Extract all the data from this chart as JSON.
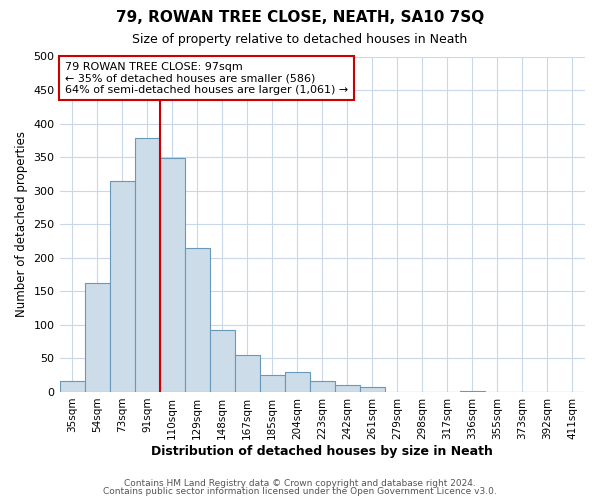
{
  "title": "79, ROWAN TREE CLOSE, NEATH, SA10 7SQ",
  "subtitle": "Size of property relative to detached houses in Neath",
  "xlabel": "Distribution of detached houses by size in Neath",
  "ylabel": "Number of detached properties",
  "bar_labels": [
    "35sqm",
    "54sqm",
    "73sqm",
    "91sqm",
    "110sqm",
    "129sqm",
    "148sqm",
    "167sqm",
    "185sqm",
    "204sqm",
    "223sqm",
    "242sqm",
    "261sqm",
    "279sqm",
    "298sqm",
    "317sqm",
    "336sqm",
    "355sqm",
    "373sqm",
    "392sqm",
    "411sqm"
  ],
  "bar_values": [
    16,
    163,
    315,
    379,
    348,
    215,
    93,
    55,
    25,
    30,
    16,
    10,
    7,
    0,
    0,
    0,
    2,
    0,
    0,
    0,
    0
  ],
  "bar_color": "#ccdce8",
  "bar_edge_color": "#6699bb",
  "vline_color": "#cc0000",
  "annotation_text": "79 ROWAN TREE CLOSE: 97sqm\n← 35% of detached houses are smaller (586)\n64% of semi-detached houses are larger (1,061) →",
  "annotation_box_color": "#ffffff",
  "annotation_box_edge": "#cc0000",
  "ylim": [
    0,
    500
  ],
  "yticks": [
    0,
    50,
    100,
    150,
    200,
    250,
    300,
    350,
    400,
    450,
    500
  ],
  "footer1": "Contains HM Land Registry data © Crown copyright and database right 2024.",
  "footer2": "Contains public sector information licensed under the Open Government Licence v3.0.",
  "background_color": "#ffffff",
  "grid_color": "#c8d8e8"
}
